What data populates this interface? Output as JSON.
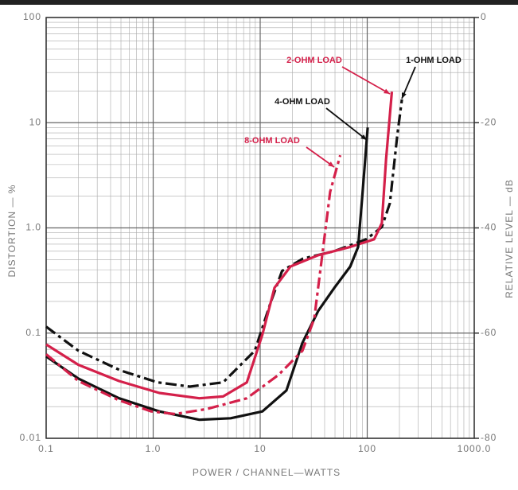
{
  "chart_data": {
    "type": "line",
    "xlabel": "POWER / CHANNEL—WATTS",
    "ylabel": "DISTORTION — %",
    "y2label": "RELATIVE LEVEL — dB",
    "xscale": "log",
    "yscale": "log",
    "grid": true,
    "xlim": [
      0.1,
      1000
    ],
    "xticks": [
      0.1,
      {
        "value": 1,
        "label": "1.0"
      },
      10,
      100,
      {
        "value": 1000,
        "label": "1000.0"
      }
    ],
    "ylim": [
      0.01,
      100
    ],
    "yticks": [
      0.01,
      0.1,
      {
        "value": 1,
        "label": "1.0"
      },
      10,
      100
    ],
    "y2lim": [
      -80,
      0
    ],
    "y2ticks": [
      -80,
      -60,
      -40,
      -20,
      0
    ],
    "series": [
      {
        "name": "1-OHM LOAD",
        "color": "#111111",
        "style": "dashed",
        "x": [
          0.1,
          0.2,
          0.5,
          1.1,
          2.2,
          4.5,
          8.9,
          12.5,
          16,
          25,
          49,
          98,
          137,
          163,
          191,
          211
        ],
        "values": [
          0.115,
          0.068,
          0.044,
          0.034,
          0.031,
          0.034,
          0.068,
          0.194,
          0.39,
          0.51,
          0.6,
          0.78,
          1.02,
          1.72,
          7.6,
          16.6
        ]
      },
      {
        "name": "2-OHM LOAD",
        "color": "#d4204a",
        "style": "solid",
        "x": [
          0.1,
          0.2,
          0.48,
          1.14,
          2.7,
          4.5,
          7.5,
          10.5,
          13.6,
          19.2,
          34.9,
          69.5,
          116,
          137,
          150,
          170
        ],
        "values": [
          0.078,
          0.05,
          0.035,
          0.027,
          0.024,
          0.025,
          0.034,
          0.097,
          0.27,
          0.43,
          0.55,
          0.66,
          0.78,
          1.11,
          4.5,
          19.7
        ]
      },
      {
        "name": "4-OHM LOAD",
        "color": "#111111",
        "style": "solid",
        "x": [
          0.1,
          0.2,
          0.48,
          1.14,
          2.7,
          5.3,
          10.5,
          17.6,
          24.8,
          34.9,
          49.4,
          69.5,
          82.2,
          89.5,
          101
        ],
        "values": [
          0.06,
          0.037,
          0.024,
          0.018,
          0.015,
          0.0155,
          0.018,
          0.0285,
          0.081,
          0.163,
          0.27,
          0.43,
          0.66,
          1.87,
          9.0
        ]
      },
      {
        "name": "8-OHM LOAD",
        "color": "#d4204a",
        "style": "dashed",
        "x": [
          0.1,
          0.2,
          0.48,
          0.96,
          1.6,
          3.2,
          7.5,
          14.8,
          24.8,
          32,
          38,
          45,
          56
        ],
        "values": [
          0.063,
          0.035,
          0.023,
          0.018,
          0.017,
          0.019,
          0.024,
          0.04,
          0.068,
          0.137,
          0.55,
          2.2,
          4.9
        ]
      }
    ]
  }
}
